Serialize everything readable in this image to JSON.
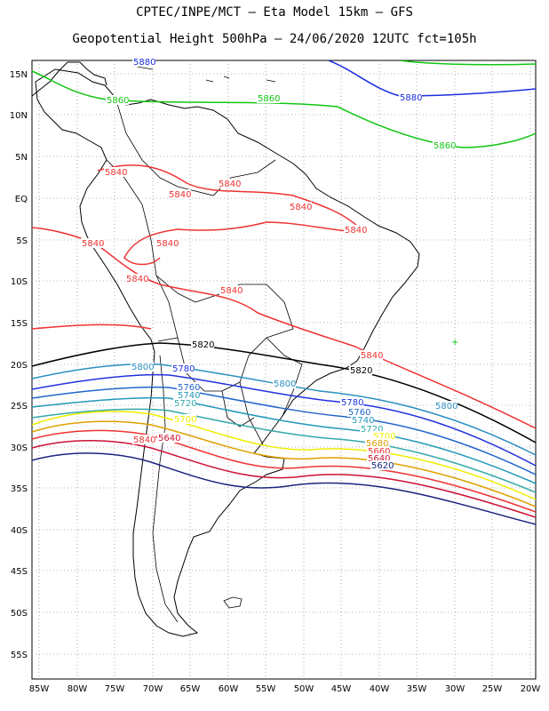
{
  "header": {
    "line1": "CPTEC/INPE/MCT –  Eta Model 15km – GFS",
    "line2": "Geopotential Height 500hPa – 24/06/2020 12UTC fct=105h"
  },
  "axes": {
    "lat_labels": [
      "15N",
      "10N",
      "5N",
      "EQ",
      "5S",
      "10S",
      "15S",
      "20S",
      "25S",
      "30S",
      "35S",
      "40S",
      "45S",
      "50S",
      "55S"
    ],
    "lon_labels": [
      "85W",
      "80W",
      "75W",
      "70W",
      "65W",
      "60W",
      "55W",
      "50W",
      "45W",
      "40W",
      "35W",
      "30W",
      "25W",
      "20W"
    ]
  },
  "map": {
    "region": "South America",
    "lon_range": [
      -86,
      -20
    ],
    "lat_range": [
      -58,
      16
    ]
  },
  "contours": {
    "c5880": {
      "value": "5880",
      "color": "#1a2fe0"
    },
    "c5860": {
      "value": "5860",
      "color": "#11c611"
    },
    "c5840": {
      "value": "5840",
      "color": "#ee3333"
    },
    "c5820": {
      "value": "5820",
      "color": "#000000"
    },
    "c5800": {
      "value": "5800",
      "color": "#2a8fc0"
    },
    "c5780": {
      "value": "5780",
      "color": "#2233dd"
    },
    "c5760": {
      "value": "5760",
      "color": "#2266cc"
    },
    "c5740": {
      "value": "5740",
      "color": "#2299bb"
    },
    "c5720": {
      "value": "5720",
      "color": "#33aaaa"
    },
    "c5700": {
      "value": "5700",
      "color": "#eeee00"
    },
    "c5680": {
      "value": "5680",
      "color": "#e0a000"
    },
    "c5660": {
      "value": "5660",
      "color": "#ee3333"
    },
    "c5640": {
      "value": "5640",
      "color": "#cc1133"
    },
    "c5620": {
      "value": "5620",
      "color": "#1a237e"
    }
  }
}
